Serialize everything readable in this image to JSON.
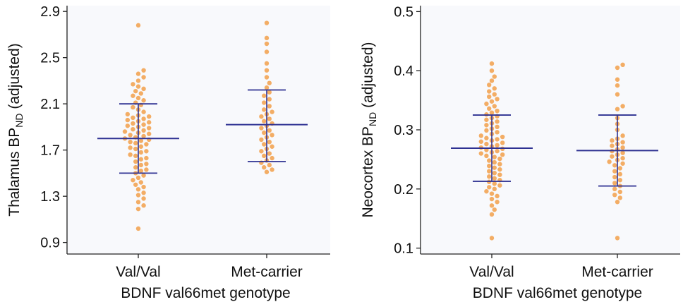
{
  "colors": {
    "plot_background": "#f8f9fc",
    "point": "#f2a95d",
    "mean_sd_bars": "#2e3192",
    "axis": "#222222"
  },
  "chart_data": [
    {
      "type": "scatter",
      "subtype": "beeswarm with mean and SD bars",
      "title": "",
      "xlabel": "BDNF val66met genotype",
      "ylabel": "Thalamus BP",
      "ylabel_subscript": "ND",
      "ylabel_suffix": " (adjusted)",
      "categories": [
        "Val/Val",
        "Met-carrier"
      ],
      "ylim": [
        0.8,
        2.95
      ],
      "yticks": [
        "0.9",
        "1.3",
        "1.7",
        "2.1",
        "2.5",
        "2.9"
      ],
      "grid": false,
      "summary": [
        {
          "category": "Val/Val",
          "mean": 1.8,
          "sd_low": 1.5,
          "sd_high": 2.1
        },
        {
          "category": "Met-carrier",
          "mean": 1.92,
          "sd_low": 1.6,
          "sd_high": 2.22
        }
      ],
      "series": [
        {
          "category": "Val/Val",
          "values": [
            1.02,
            1.19,
            1.22,
            1.25,
            1.28,
            1.31,
            1.33,
            1.36,
            1.38,
            1.4,
            1.42,
            1.44,
            1.46,
            1.48,
            1.5,
            1.52,
            1.53,
            1.55,
            1.57,
            1.58,
            1.6,
            1.62,
            1.63,
            1.65,
            1.66,
            1.68,
            1.69,
            1.71,
            1.72,
            1.73,
            1.75,
            1.76,
            1.77,
            1.78,
            1.79,
            1.8,
            1.81,
            1.82,
            1.83,
            1.84,
            1.85,
            1.86,
            1.87,
            1.88,
            1.89,
            1.9,
            1.91,
            1.92,
            1.93,
            1.94,
            1.95,
            1.96,
            1.97,
            1.98,
            1.99,
            2.0,
            2.01,
            2.03,
            2.05,
            2.07,
            2.09,
            2.11,
            2.13,
            2.15,
            2.17,
            2.19,
            2.21,
            2.23,
            2.25,
            2.27,
            2.3,
            2.33,
            2.36,
            2.39,
            2.78
          ]
        },
        {
          "category": "Met-carrier",
          "values": [
            1.51,
            1.53,
            1.55,
            1.57,
            1.59,
            1.61,
            1.63,
            1.65,
            1.67,
            1.69,
            1.71,
            1.73,
            1.75,
            1.77,
            1.79,
            1.81,
            1.83,
            1.85,
            1.87,
            1.89,
            1.91,
            1.93,
            1.95,
            1.97,
            1.99,
            2.01,
            2.03,
            2.05,
            2.08,
            2.11,
            2.14,
            2.17,
            2.2,
            2.24,
            2.28,
            2.33,
            2.39,
            2.45,
            2.55,
            2.62,
            2.67,
            2.8
          ]
        }
      ]
    },
    {
      "type": "scatter",
      "subtype": "beeswarm with mean and SD bars",
      "title": "",
      "xlabel": "BDNF val66met genotype",
      "ylabel": "Neocortex BP",
      "ylabel_subscript": "ND",
      "ylabel_suffix": " (adjusted)",
      "categories": [
        "Val/Val",
        "Met-carrier"
      ],
      "ylim": [
        0.09,
        0.51
      ],
      "yticks": [
        "0.1",
        "0.2",
        "0.3",
        "0.4",
        "0.5"
      ],
      "grid": false,
      "summary": [
        {
          "category": "Val/Val",
          "mean": 0.269,
          "sd_low": 0.213,
          "sd_high": 0.325
        },
        {
          "category": "Met-carrier",
          "mean": 0.265,
          "sd_low": 0.205,
          "sd_high": 0.325
        }
      ],
      "series": [
        {
          "category": "Val/Val",
          "values": [
            0.117,
            0.157,
            0.165,
            0.172,
            0.178,
            0.183,
            0.188,
            0.192,
            0.196,
            0.2,
            0.203,
            0.206,
            0.209,
            0.212,
            0.215,
            0.218,
            0.221,
            0.224,
            0.227,
            0.23,
            0.233,
            0.236,
            0.239,
            0.242,
            0.245,
            0.248,
            0.251,
            0.254,
            0.256,
            0.258,
            0.26,
            0.262,
            0.264,
            0.266,
            0.268,
            0.27,
            0.272,
            0.274,
            0.276,
            0.278,
            0.28,
            0.282,
            0.284,
            0.286,
            0.288,
            0.29,
            0.293,
            0.296,
            0.299,
            0.302,
            0.305,
            0.308,
            0.311,
            0.314,
            0.317,
            0.32,
            0.323,
            0.326,
            0.329,
            0.332,
            0.336,
            0.34,
            0.344,
            0.348,
            0.352,
            0.356,
            0.36,
            0.365,
            0.37,
            0.376,
            0.383,
            0.39,
            0.4,
            0.412
          ]
        },
        {
          "category": "Met-carrier",
          "values": [
            0.117,
            0.178,
            0.185,
            0.19,
            0.195,
            0.2,
            0.205,
            0.21,
            0.215,
            0.22,
            0.225,
            0.23,
            0.235,
            0.24,
            0.243,
            0.246,
            0.249,
            0.252,
            0.255,
            0.258,
            0.261,
            0.264,
            0.267,
            0.27,
            0.273,
            0.276,
            0.279,
            0.282,
            0.285,
            0.29,
            0.3,
            0.31,
            0.32,
            0.335,
            0.34,
            0.36,
            0.375,
            0.385,
            0.405,
            0.41
          ]
        }
      ]
    }
  ]
}
